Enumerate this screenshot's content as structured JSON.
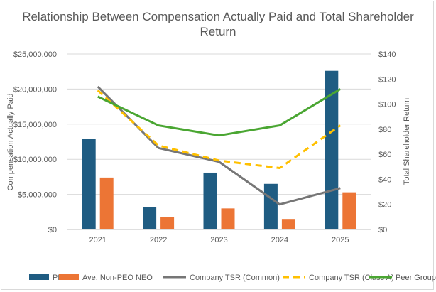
{
  "chart_data": {
    "type": "bar",
    "title_lines": [
      "Relationship Between Compensation Actually Paid and Total Shareholder",
      "Return"
    ],
    "categories": [
      "2021",
      "2022",
      "2023",
      "2024",
      "2025"
    ],
    "y_left": {
      "label": "Compensation Actually Paid",
      "range": [
        0,
        25000000
      ],
      "ticks": [
        0,
        5000000,
        10000000,
        15000000,
        20000000,
        25000000
      ],
      "tick_labels": [
        "$0",
        "$5,000,000",
        "$10,000,000",
        "$15,000,000",
        "$20,000,000",
        "$25,000,000"
      ]
    },
    "y_right": {
      "label": "Total Shareholder Return",
      "range": [
        0,
        140
      ],
      "ticks": [
        0,
        20,
        40,
        60,
        80,
        100,
        120,
        140
      ],
      "tick_labels": [
        "$0",
        "$20",
        "$40",
        "$60",
        "$80",
        "$100",
        "$120",
        "$140"
      ]
    },
    "series": [
      {
        "name": "PEO",
        "kind": "bar",
        "axis": "left",
        "color": "#1f5c82",
        "values": [
          12900000,
          3200000,
          8100000,
          6500000,
          22600000
        ]
      },
      {
        "name": "Ave. Non-PEO NEO",
        "kind": "bar",
        "axis": "left",
        "color": "#ec7535",
        "values": [
          7400000,
          1800000,
          3000000,
          1500000,
          5300000
        ]
      },
      {
        "name": "Company TSR (Common)",
        "kind": "line",
        "axis": "right",
        "color": "#767676",
        "dash": "solid",
        "values": [
          114,
          65,
          54,
          20,
          33
        ]
      },
      {
        "name": "Company TSR (Class A)",
        "kind": "line",
        "axis": "right",
        "color": "#ffc000",
        "dash": "dashed",
        "values": [
          111,
          67,
          55,
          49,
          83
        ]
      },
      {
        "name": "Peer Group TSR",
        "kind": "line",
        "axis": "right",
        "color": "#4aa632",
        "dash": "solid",
        "values": [
          106,
          83,
          75,
          83,
          112
        ]
      }
    ],
    "gridlines": true,
    "legend_position": "bottom"
  }
}
